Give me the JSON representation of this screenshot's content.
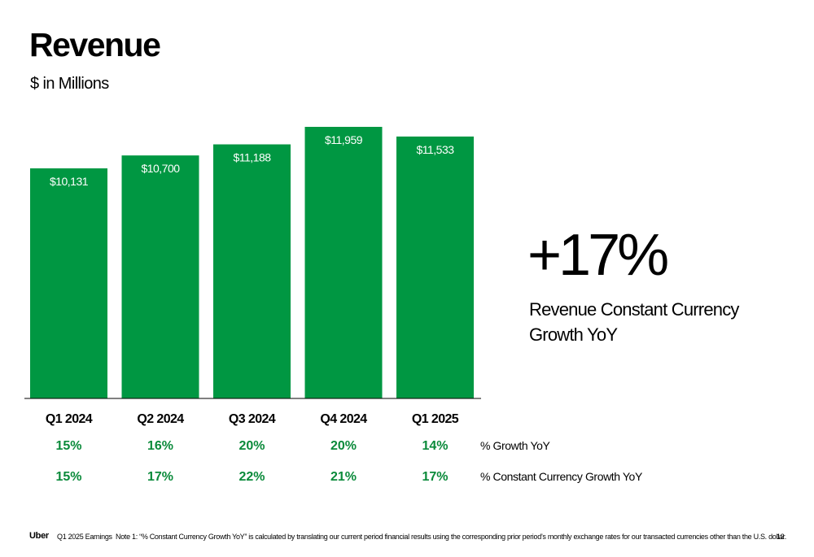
{
  "header": {
    "title": "Revenue",
    "subtitle": "$ in Millions"
  },
  "callout": {
    "value": "+17%",
    "label": "Revenue Constant Currency Growth YoY"
  },
  "chart_data": {
    "type": "bar",
    "title": "Revenue",
    "ylabel": "$ in Millions",
    "categories": [
      "Q1 2024",
      "Q2 2024",
      "Q3 2024",
      "Q4 2024",
      "Q1 2025"
    ],
    "values": [
      10131,
      10700,
      11188,
      11959,
      11533
    ],
    "value_labels": [
      "$10,131",
      "$10,700",
      "$11,188",
      "$11,959",
      "$11,533"
    ],
    "bar_color": "#009742",
    "pct_color": "#0a8a3a",
    "grid": false,
    "growth_rows": [
      {
        "label": "% Growth YoY",
        "values": [
          "15%",
          "16%",
          "20%",
          "20%",
          "14%"
        ]
      },
      {
        "label": "% Constant Currency Growth YoY",
        "values": [
          "15%",
          "17%",
          "22%",
          "21%",
          "17%"
        ]
      }
    ]
  },
  "footer": {
    "logo": "Uber",
    "earnings": "Q1 2025 Earnings",
    "note": "Note 1: “% Constant Currency Growth YoY” is calculated by translating our current period financial results using the corresponding prior period’s monthly exchange rates for our transacted currencies other than the U.S. dollar.",
    "page": "12"
  }
}
